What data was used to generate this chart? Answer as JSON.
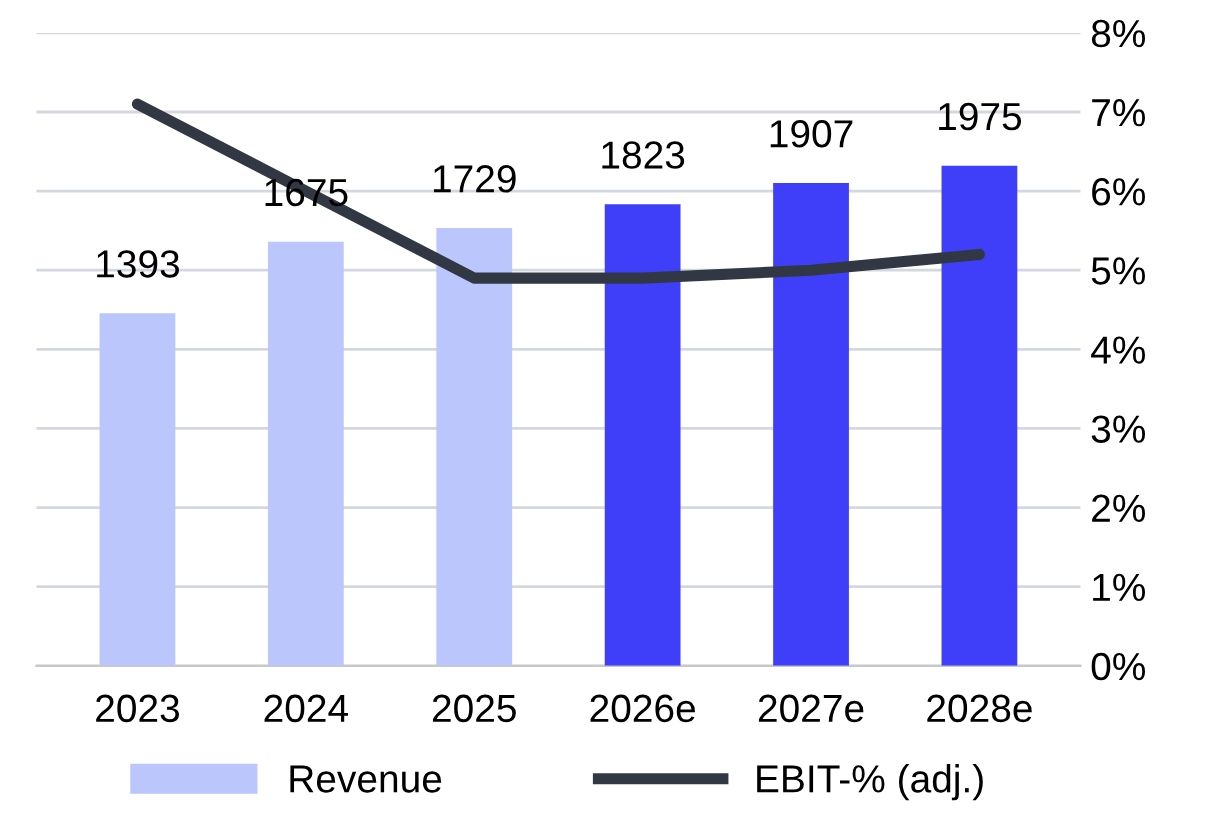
{
  "chart_data": {
    "type": "bar",
    "categories": [
      "2023",
      "2024",
      "2025",
      "2026e",
      "2027e",
      "2028e"
    ],
    "series": [
      {
        "name": "Revenue",
        "color": "#bac6fc",
        "colors": [
          "#bac6fc",
          "#bac6fc",
          "#bac6fc",
          "#3f3ffa",
          "#3f3ffa",
          "#3f3ffa"
        ],
        "values": [
          1393,
          1675,
          1729,
          1823,
          1907,
          1975
        ],
        "value_labels": [
          "1393",
          "1675",
          "1729",
          "1823",
          "1907",
          "1975"
        ]
      },
      {
        "name": "EBIT-% (adj.)",
        "type": "line",
        "axis": "y2",
        "color": "#323843",
        "values": [
          7.1,
          6.0,
          4.9,
          4.9,
          5.0,
          5.2
        ]
      }
    ],
    "ylim": [
      0,
      2500
    ],
    "y2lim": [
      0,
      8
    ],
    "y2ticks": [
      {
        "value": 0,
        "label": "0%"
      },
      {
        "value": 1,
        "label": "1%"
      },
      {
        "value": 2,
        "label": "2%"
      },
      {
        "value": 3,
        "label": "3%"
      },
      {
        "value": 4,
        "label": "4%"
      },
      {
        "value": 5,
        "label": "5%"
      },
      {
        "value": 6,
        "label": "6%"
      },
      {
        "value": 7,
        "label": "7%"
      },
      {
        "value": 8,
        "label": "8%"
      }
    ],
    "grid": "y",
    "legend": "bottom",
    "marker": "none",
    "line_style": "solid"
  }
}
